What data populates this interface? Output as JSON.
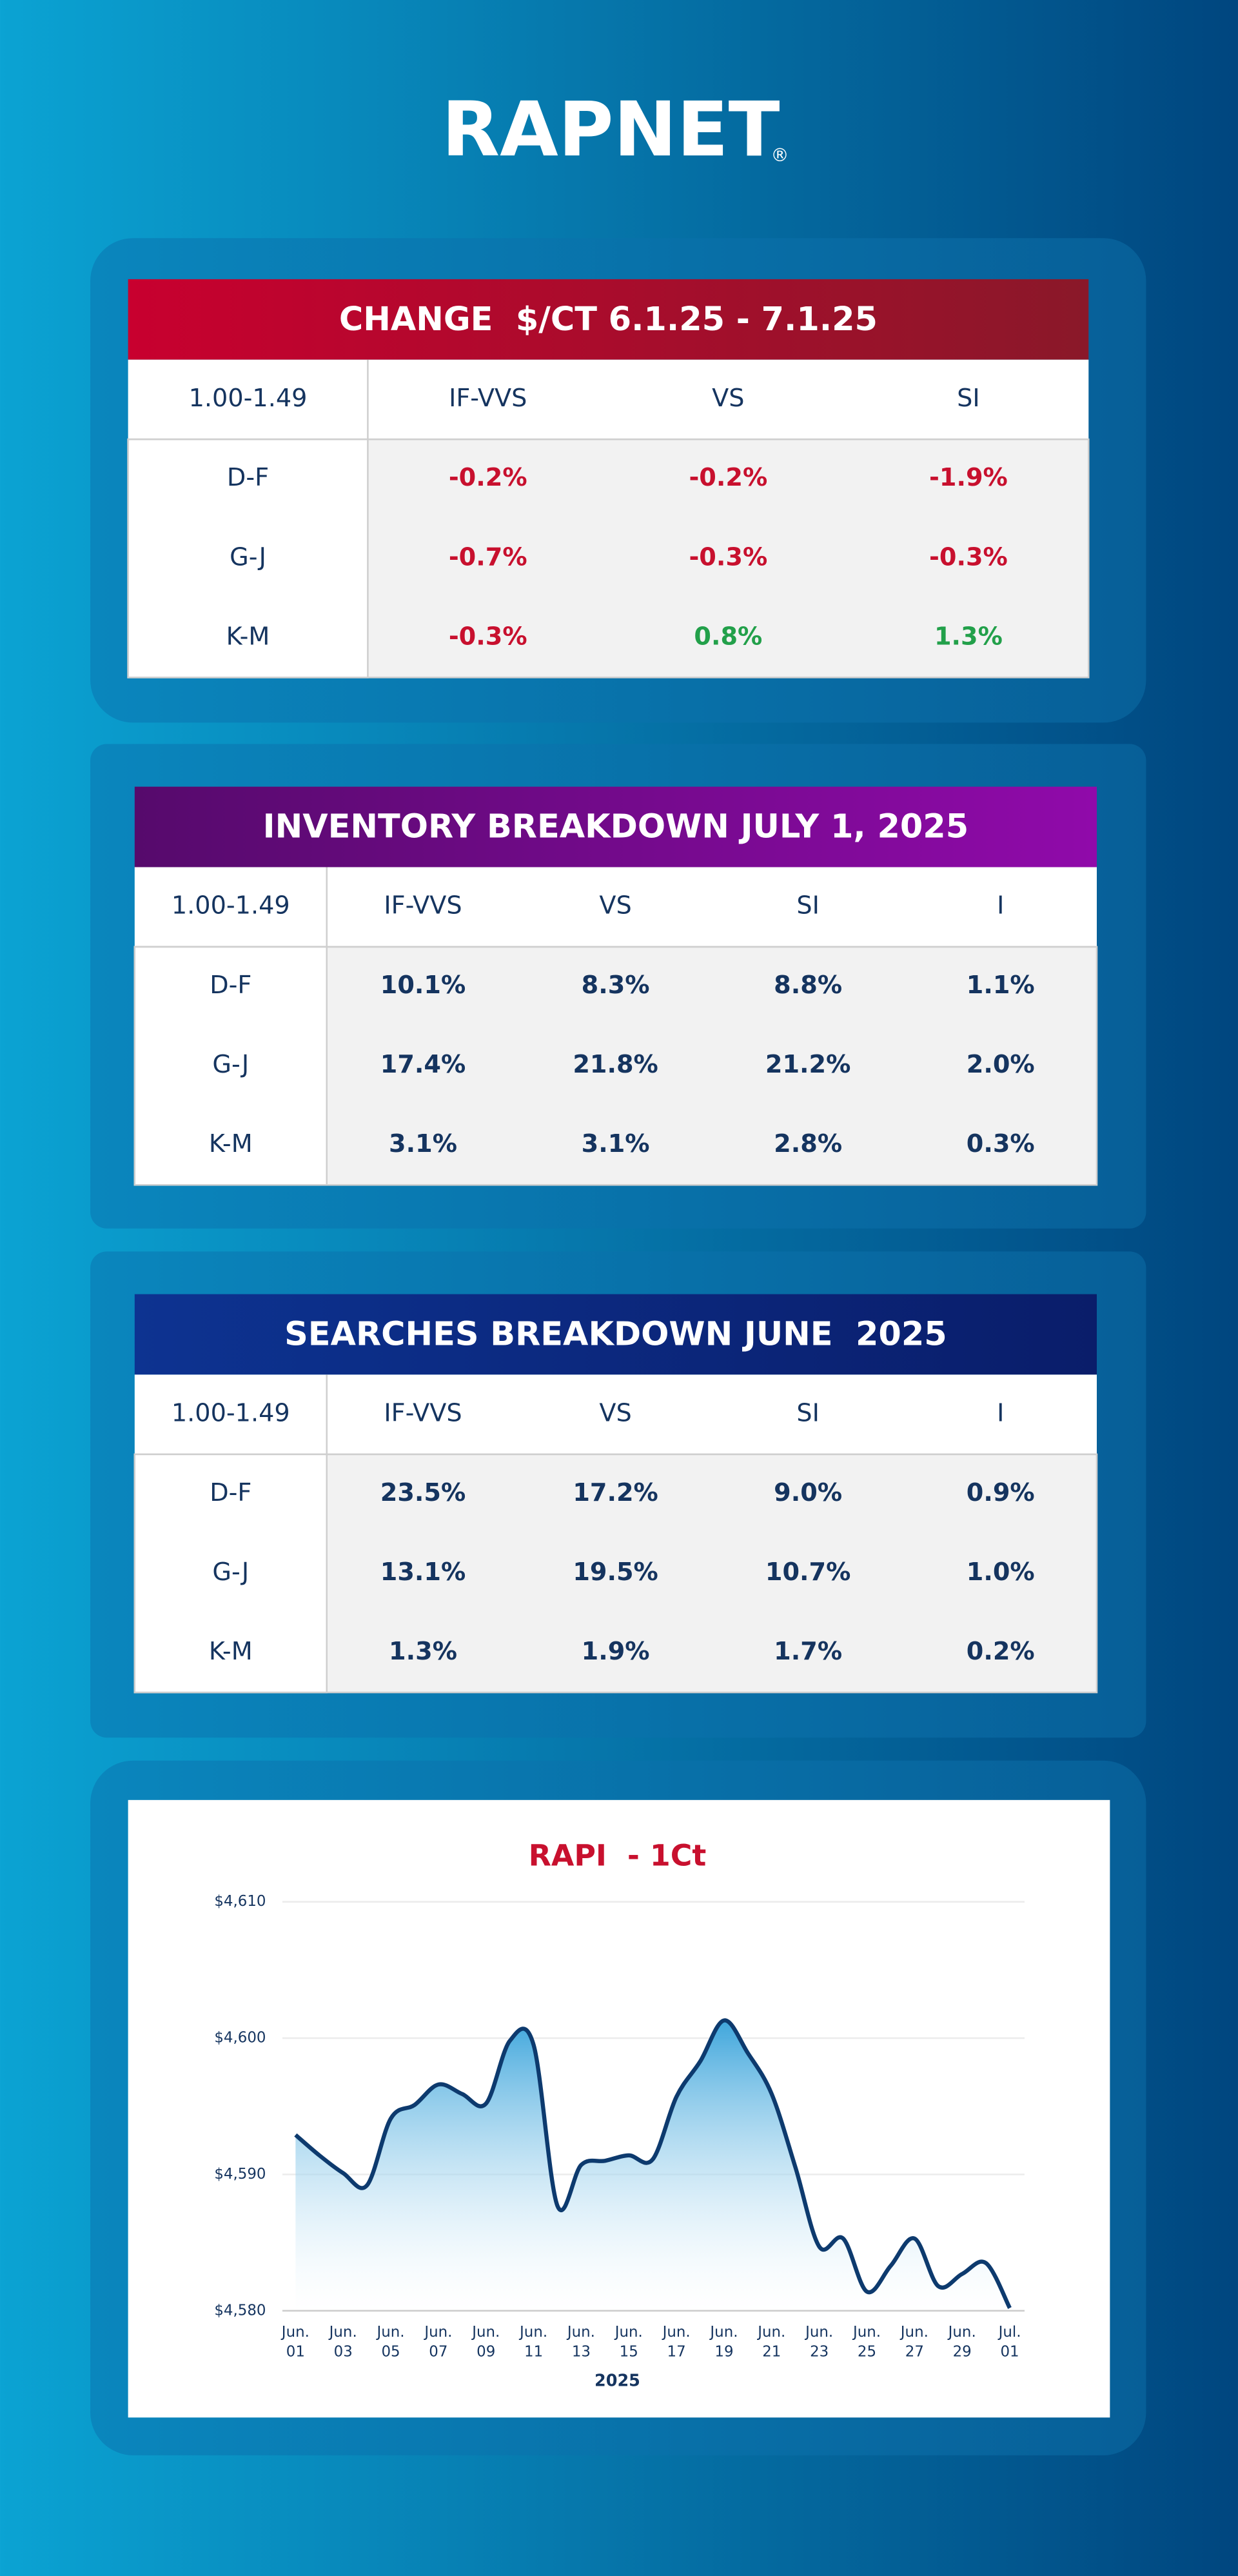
{
  "logo": "RAPNET",
  "logo_mark": "®",
  "tables": [
    {
      "title": "CHANGE  $/CT 6.1.25 - 7.1.25",
      "header": [
        "1.00-1.49",
        "IF-VVS",
        "VS",
        "SI"
      ],
      "rows": [
        [
          "D-F",
          "-0.2%",
          "-0.2%",
          "-1.9%"
        ],
        [
          "G-J",
          "-0.7%",
          "-0.3%",
          "-0.3%"
        ],
        [
          "K-M",
          "-0.3%",
          "0.8%",
          "1.3%"
        ]
      ]
    },
    {
      "title": "INVENTORY BREAKDOWN JULY 1, 2025",
      "header": [
        "1.00-1.49",
        "IF-VVS",
        "VS",
        "SI",
        "I"
      ],
      "rows": [
        [
          "D-F",
          "10.1%",
          "8.3%",
          "8.8%",
          "1.1%"
        ],
        [
          "G-J",
          "17.4%",
          "21.8%",
          "21.2%",
          "2.0%"
        ],
        [
          "K-M",
          "3.1%",
          "3.1%",
          "2.8%",
          "0.3%"
        ]
      ]
    },
    {
      "title": "SEARCHES BREAKDOWN JUNE  2025",
      "header": [
        "1.00-1.49",
        "IF-VVS",
        "VS",
        "SI",
        "I"
      ],
      "rows": [
        [
          "D-F",
          "23.5%",
          "17.2%",
          "9.0%",
          "0.9%"
        ],
        [
          "G-J",
          "13.1%",
          "19.5%",
          "10.7%",
          "1.0%"
        ],
        [
          "K-M",
          "1.3%",
          "1.9%",
          "1.7%",
          "0.2%"
        ]
      ]
    }
  ],
  "chart_data": {
    "type": "line",
    "title": "RAPI  - 1Ct",
    "x_label": "2025",
    "color": "#0d3a6e",
    "categories": [
      "Jun. 01",
      null,
      "Jun. 03",
      null,
      "Jun. 05",
      null,
      "Jun. 07",
      null,
      "Jun. 09",
      null,
      "Jun. 11",
      null,
      "Jun. 13",
      null,
      "Jun. 15",
      null,
      "Jun. 17",
      null,
      "Jun. 19",
      null,
      "Jun. 21",
      null,
      "Jun. 23",
      null,
      "Jun. 25",
      null,
      "Jun. 27",
      null,
      "Jun. 29",
      null,
      "Jul. 01"
    ],
    "values": [
      4592.9,
      4591.4,
      4590.1,
      4589.2,
      4594.1,
      4595.1,
      4596.6,
      4595.9,
      4595.2,
      4599.8,
      4599.5,
      4587.7,
      4590.7,
      4591.0,
      4591.4,
      4591.1,
      4595.7,
      4598.3,
      4601.3,
      4598.9,
      4595.9,
      4590.5,
      4584.7,
      4585.3,
      4581.4,
      4583.3,
      4585.3,
      4581.8,
      4582.7,
      4583.5,
      4580.2
    ],
    "ylim": [
      4580,
      4610
    ],
    "yticks": [
      {
        "value": 4580,
        "label": "$4,580"
      },
      {
        "value": 4590,
        "label": "$4,590"
      },
      {
        "value": 4600,
        "label": "$4,600"
      },
      {
        "value": 4610,
        "label": "$4,610"
      }
    ],
    "grid": true
  }
}
